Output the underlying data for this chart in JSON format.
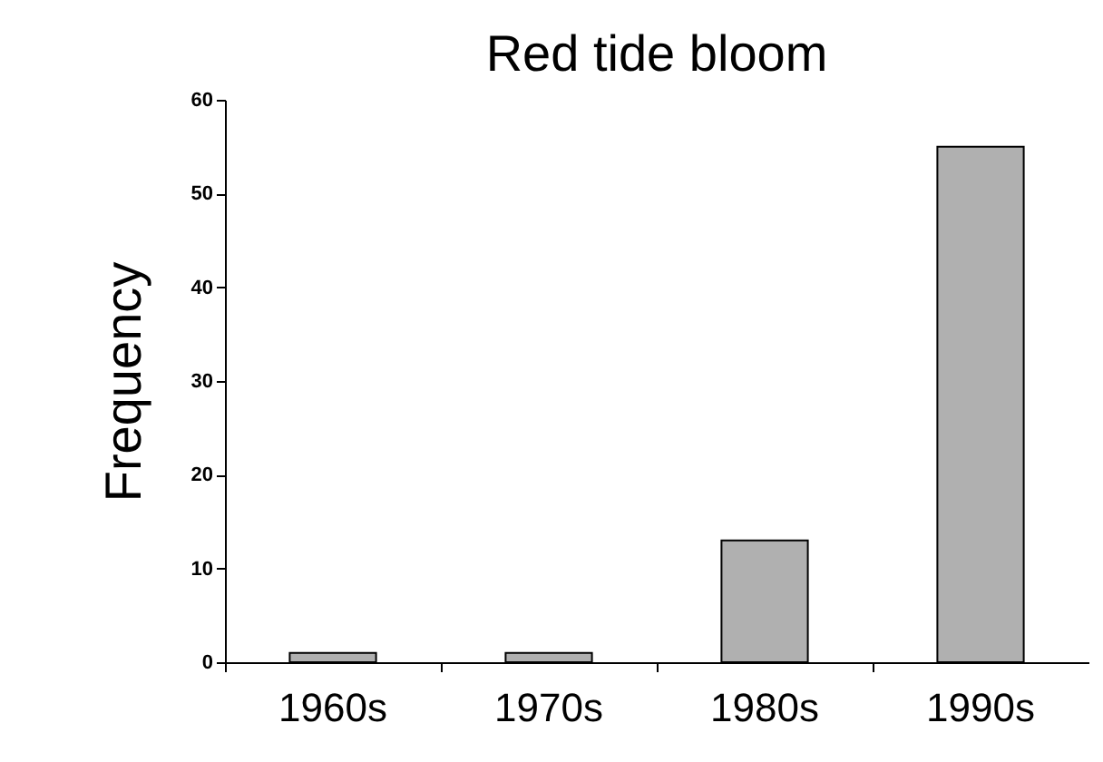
{
  "chart_data": {
    "type": "bar",
    "title": "Red tide bloom",
    "ylabel": "Frequency",
    "categories": [
      "1960s",
      "1970s",
      "1980s",
      "1990s"
    ],
    "values": [
      1,
      1,
      13,
      55
    ],
    "color": "#b0b0b0",
    "ylim": [
      0,
      60
    ],
    "yticks": [
      0,
      10,
      20,
      30,
      40,
      50,
      60
    ],
    "grid": false
  }
}
